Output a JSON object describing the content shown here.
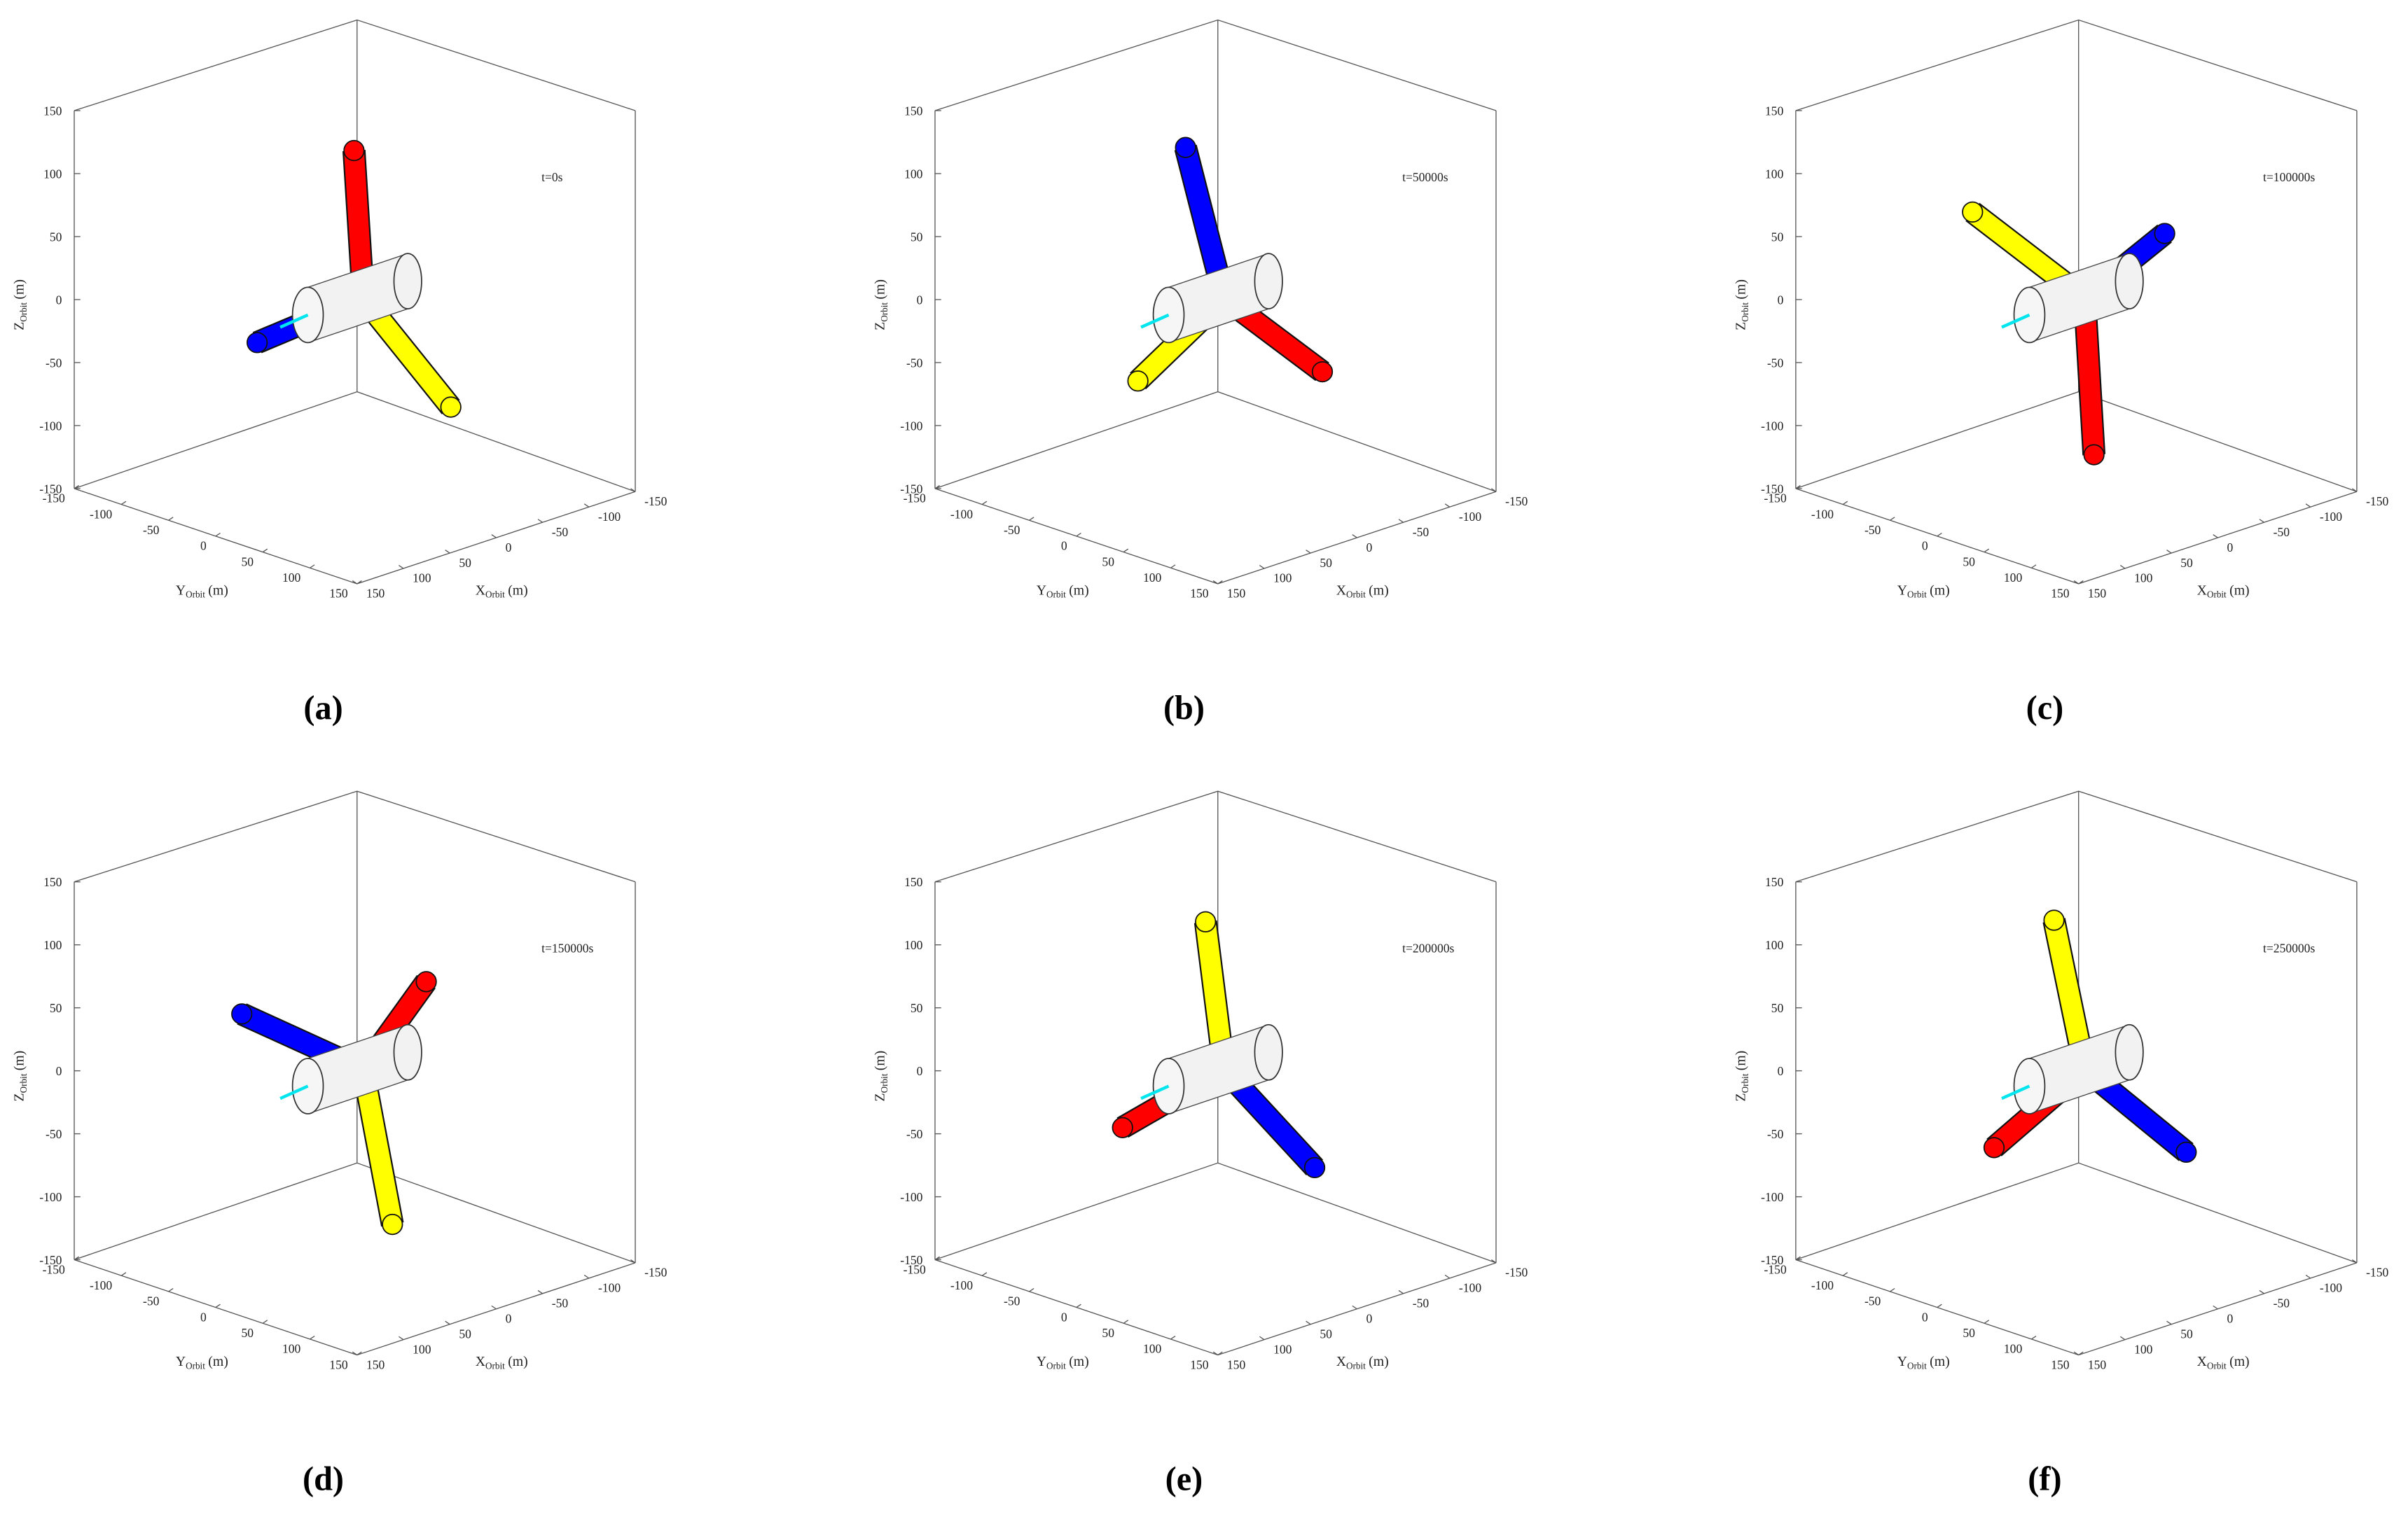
{
  "axes": {
    "z_label": {
      "main": "Z",
      "sub": "Orbit",
      "unit": "(m)"
    },
    "y_label": {
      "main": "Y",
      "sub": "Orbit",
      "unit": "(m)"
    },
    "x_label": {
      "main": "X",
      "sub": "Orbit",
      "unit": "(m)"
    },
    "z_ticks": [
      150,
      100,
      50,
      0,
      -50,
      -100,
      -150
    ],
    "y_ticks": [
      -150,
      -100,
      -50,
      0,
      50,
      100,
      150
    ],
    "x_ticks": [
      150,
      100,
      50,
      0,
      -50,
      -100,
      -150
    ]
  },
  "panels": [
    {
      "caption": "(a)",
      "time": "t=0s"
    },
    {
      "caption": "(b)",
      "time": "t=50000s"
    },
    {
      "caption": "(c)",
      "time": "t=100000s"
    },
    {
      "caption": "(d)",
      "time": "t=150000s"
    },
    {
      "caption": "(e)",
      "time": "t=200000s"
    },
    {
      "caption": "(f)",
      "time": "t=250000s"
    }
  ]
}
